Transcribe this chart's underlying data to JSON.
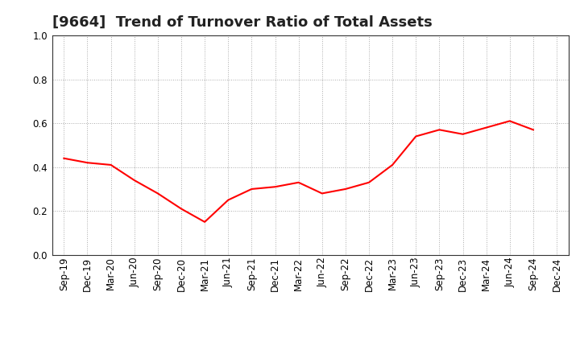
{
  "title": "[9664]  Trend of Turnover Ratio of Total Assets",
  "x_labels": [
    "Sep-19",
    "Dec-19",
    "Mar-20",
    "Jun-20",
    "Sep-20",
    "Dec-20",
    "Mar-21",
    "Jun-21",
    "Sep-21",
    "Dec-21",
    "Mar-22",
    "Jun-22",
    "Sep-22",
    "Dec-22",
    "Mar-23",
    "Jun-23",
    "Sep-23",
    "Dec-23",
    "Mar-24",
    "Jun-24",
    "Sep-24",
    "Dec-24"
  ],
  "y_values": [
    0.44,
    0.42,
    0.41,
    0.34,
    0.28,
    0.21,
    0.15,
    0.25,
    0.3,
    0.31,
    0.33,
    0.28,
    0.3,
    0.33,
    0.41,
    0.54,
    0.57,
    0.55,
    0.58,
    0.61,
    0.57,
    null
  ],
  "line_color": "#ff0000",
  "ylim": [
    0.0,
    1.0
  ],
  "yticks": [
    0.0,
    0.2,
    0.4,
    0.6,
    0.8,
    1.0
  ],
  "background_color": "#ffffff",
  "grid_color": "#aaaaaa",
  "title_fontsize": 13,
  "tick_fontsize": 8.5
}
